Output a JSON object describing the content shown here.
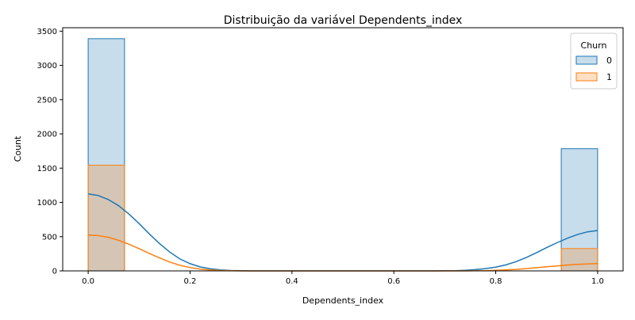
{
  "chart_data": {
    "type": "histogram",
    "title": "Distribuição da variável Dependents_index",
    "xlabel": "Dependents_index",
    "ylabel": "Count",
    "xlim": [
      -0.05,
      1.05
    ],
    "ylim": [
      0,
      3550
    ],
    "x_ticks": [
      0.0,
      0.2,
      0.4,
      0.6,
      0.8,
      1.0
    ],
    "x_tick_labels": [
      "0.0",
      "0.2",
      "0.4",
      "0.6",
      "0.8",
      "1.0"
    ],
    "y_ticks": [
      0,
      500,
      1000,
      1500,
      2000,
      2500,
      3000,
      3500
    ],
    "y_tick_labels": [
      "0",
      "500",
      "1000",
      "1500",
      "2000",
      "2500",
      "3000",
      "3500"
    ],
    "legend": {
      "title": "Churn",
      "placement": "top-right"
    },
    "series": [
      {
        "name": "0",
        "color": "#1f77b4",
        "bins": [
          {
            "x0": 0.0,
            "x1": 0.0714,
            "count": 3390
          },
          {
            "x0": 0.9286,
            "x1": 1.0,
            "count": 1784
          }
        ],
        "kde": [
          [
            0.0,
            1125
          ],
          [
            0.02,
            1100
          ],
          [
            0.04,
            1040
          ],
          [
            0.06,
            950
          ],
          [
            0.08,
            830
          ],
          [
            0.1,
            690
          ],
          [
            0.12,
            540
          ],
          [
            0.14,
            400
          ],
          [
            0.16,
            275
          ],
          [
            0.18,
            175
          ],
          [
            0.2,
            105
          ],
          [
            0.22,
            58
          ],
          [
            0.24,
            30
          ],
          [
            0.26,
            14
          ],
          [
            0.28,
            6
          ],
          [
            0.3,
            2
          ],
          [
            0.32,
            0
          ],
          [
            0.68,
            0
          ],
          [
            0.7,
            2
          ],
          [
            0.72,
            4
          ],
          [
            0.74,
            9
          ],
          [
            0.76,
            18
          ],
          [
            0.78,
            33
          ],
          [
            0.8,
            55
          ],
          [
            0.82,
            88
          ],
          [
            0.84,
            135
          ],
          [
            0.86,
            195
          ],
          [
            0.88,
            265
          ],
          [
            0.9,
            340
          ],
          [
            0.92,
            410
          ],
          [
            0.94,
            475
          ],
          [
            0.96,
            530
          ],
          [
            0.98,
            570
          ],
          [
            1.0,
            590
          ]
        ]
      },
      {
        "name": "1",
        "color": "#ff7f0e",
        "bins": [
          {
            "x0": 0.0,
            "x1": 0.0714,
            "count": 1543
          },
          {
            "x0": 0.9286,
            "x1": 1.0,
            "count": 326
          }
        ],
        "kde": [
          [
            0.0,
            525
          ],
          [
            0.02,
            515
          ],
          [
            0.04,
            490
          ],
          [
            0.06,
            445
          ],
          [
            0.08,
            390
          ],
          [
            0.1,
            325
          ],
          [
            0.12,
            255
          ],
          [
            0.14,
            190
          ],
          [
            0.16,
            130
          ],
          [
            0.18,
            82
          ],
          [
            0.2,
            48
          ],
          [
            0.22,
            26
          ],
          [
            0.24,
            13
          ],
          [
            0.26,
            6
          ],
          [
            0.28,
            2
          ],
          [
            0.3,
            0
          ],
          [
            0.74,
            0
          ],
          [
            0.76,
            2
          ],
          [
            0.78,
            4
          ],
          [
            0.8,
            8
          ],
          [
            0.82,
            14
          ],
          [
            0.84,
            22
          ],
          [
            0.86,
            33
          ],
          [
            0.88,
            46
          ],
          [
            0.9,
            60
          ],
          [
            0.92,
            73
          ],
          [
            0.94,
            85
          ],
          [
            0.96,
            95
          ],
          [
            0.98,
            102
          ],
          [
            1.0,
            106
          ]
        ]
      }
    ]
  }
}
